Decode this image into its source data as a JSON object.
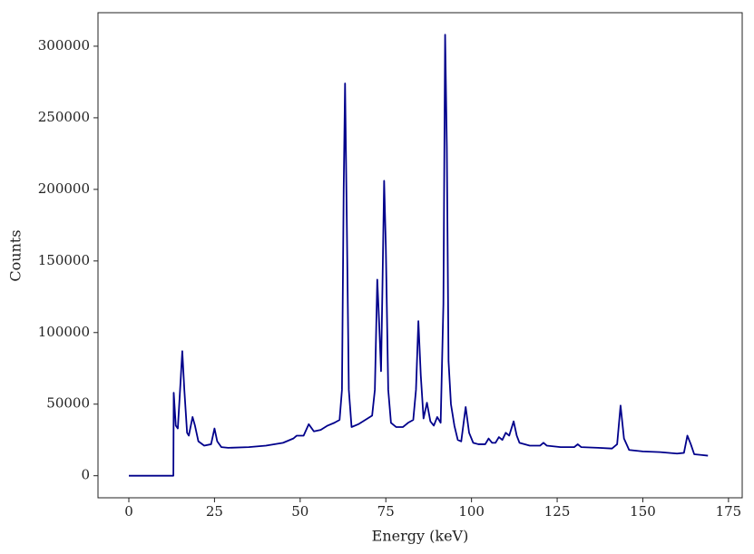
{
  "chart_data": {
    "type": "line",
    "xlabel": "Energy (keV)",
    "ylabel": "Counts",
    "xlim": [
      -9,
      179
    ],
    "ylim": [
      -15400,
      323400
    ],
    "xticks": [
      0,
      25,
      50,
      75,
      100,
      125,
      150,
      175
    ],
    "yticks": [
      0,
      50000,
      100000,
      150000,
      200000,
      250000,
      300000
    ],
    "grid": false,
    "series": [
      {
        "color": "#00008b",
        "x": [
          0,
          13,
          13.1,
          13.7,
          14.3,
          15.2,
          15.6,
          16.2,
          17,
          17.5,
          18.6,
          19.3,
          20.3,
          22,
          24,
          25,
          25.8,
          27,
          29,
          35,
          40,
          45,
          48,
          49,
          51,
          52.5,
          54,
          56,
          58,
          60,
          61.5,
          62.2,
          62.7,
          63.1,
          63.6,
          64.2,
          65,
          67,
          69,
          71,
          71.8,
          72.5,
          73,
          73.6,
          74,
          74.5,
          75,
          75.7,
          76.5,
          78,
          80,
          81.5,
          83,
          83.8,
          84.5,
          85.2,
          86,
          87,
          88,
          89,
          90,
          91,
          91.8,
          92.3,
          92.8,
          93.3,
          94,
          95,
          96,
          97,
          98.3,
          99.3,
          100.5,
          102,
          104,
          105,
          106,
          107,
          108,
          109,
          110,
          111,
          112.3,
          113.2,
          114,
          117,
          120,
          121,
          122,
          126,
          130,
          131,
          132,
          137,
          141,
          142.5,
          143.5,
          144.5,
          146,
          150,
          155,
          160,
          162,
          163,
          164,
          165,
          167,
          169
        ],
        "values": [
          0,
          0,
          58000,
          35000,
          33000,
          70000,
          87000,
          60000,
          30000,
          28000,
          41000,
          35000,
          24000,
          21000,
          22000,
          33000,
          24000,
          20000,
          19500,
          20000,
          21000,
          23000,
          26000,
          28000,
          28000,
          36000,
          31000,
          32000,
          35000,
          37000,
          39000,
          60000,
          200000,
          274000,
          180000,
          60000,
          34000,
          36000,
          39000,
          42000,
          60000,
          137000,
          110000,
          73000,
          130000,
          206000,
          160000,
          60000,
          37000,
          34000,
          34000,
          37000,
          39000,
          60000,
          108000,
          70000,
          40000,
          51000,
          38000,
          35000,
          41000,
          37000,
          120000,
          308000,
          230000,
          80000,
          50000,
          35000,
          25000,
          24000,
          48000,
          30000,
          23000,
          22000,
          22000,
          26000,
          23000,
          23000,
          27000,
          25000,
          30000,
          28000,
          38000,
          28000,
          23000,
          21000,
          21000,
          23000,
          21000,
          20000,
          20000,
          22000,
          20000,
          19500,
          19000,
          22000,
          49000,
          26000,
          18000,
          17000,
          16500,
          15500,
          16000,
          28000,
          22000,
          15000,
          14500,
          14000
        ]
      }
    ]
  }
}
